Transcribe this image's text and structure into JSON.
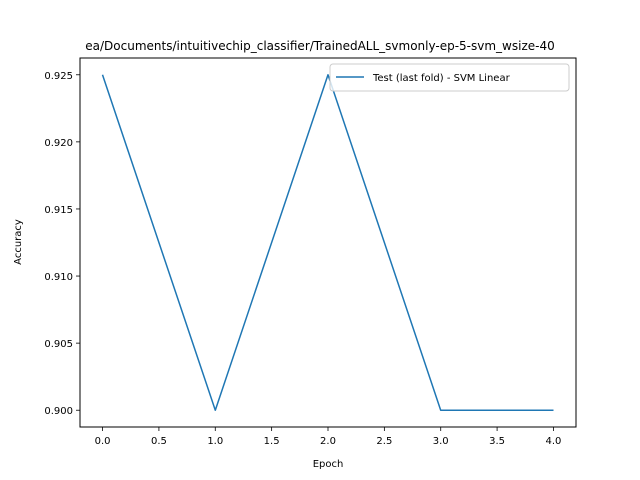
{
  "chart_data": {
    "type": "line",
    "title": "ea/Documents/intuitivechip_classifier/TrainedALL_svmonly-ep-5-svm_wsize-40",
    "xlabel": "Epoch",
    "ylabel": "Accuracy",
    "xlim": [
      -0.2,
      4.2
    ],
    "ylim": [
      0.89875,
      0.92625
    ],
    "xticks": [
      "0.0",
      "0.5",
      "1.0",
      "1.5",
      "2.0",
      "2.5",
      "3.0",
      "3.5",
      "4.0"
    ],
    "xtick_values": [
      0.0,
      0.5,
      1.0,
      1.5,
      2.0,
      2.5,
      3.0,
      3.5,
      4.0
    ],
    "yticks": [
      "0.900",
      "0.905",
      "0.910",
      "0.915",
      "0.920",
      "0.925"
    ],
    "ytick_values": [
      0.9,
      0.905,
      0.91,
      0.915,
      0.92,
      0.925
    ],
    "grid": false,
    "legend_position": "top-right",
    "series": [
      {
        "name": "Test (last fold) - SVM Linear",
        "color": "#1f77b4",
        "x": [
          0,
          1,
          2,
          3,
          4
        ],
        "y": [
          0.925,
          0.9,
          0.925,
          0.9,
          0.9
        ]
      }
    ]
  }
}
